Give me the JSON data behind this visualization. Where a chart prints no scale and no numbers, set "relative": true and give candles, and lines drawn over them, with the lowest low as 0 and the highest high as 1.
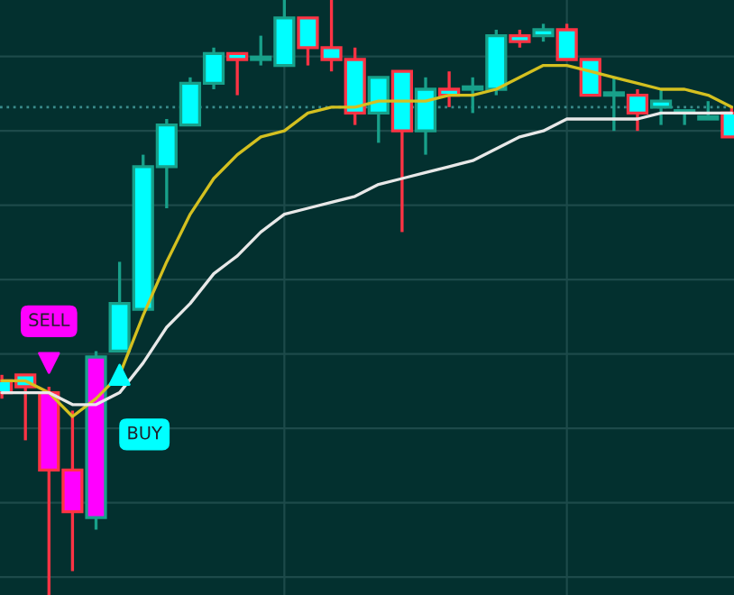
{
  "chart_data": {
    "type": "candlestick",
    "relative": true,
    "tick_labels": false,
    "grid": true,
    "categories": [
      null,
      null,
      null,
      null,
      null,
      null,
      null,
      null,
      null,
      null,
      null,
      null,
      null,
      null,
      null,
      null,
      null,
      null,
      null,
      null,
      null,
      null,
      null,
      null,
      null,
      null,
      null,
      null,
      null,
      null,
      null,
      null
    ],
    "ohlc": [
      [
        0.36,
        0.37,
        0.33,
        0.34
      ],
      [
        0.37,
        0.37,
        0.26,
        0.35
      ],
      [
        0.34,
        0.35,
        0,
        0.21
      ],
      [
        0.21,
        0.31,
        0.04,
        0.14
      ],
      [
        0.13,
        0.41,
        0.11,
        0.4
      ],
      [
        0.41,
        0.56,
        0.41,
        0.49
      ],
      [
        0.48,
        0.74,
        0.48,
        0.72
      ],
      [
        0.72,
        0.8,
        0.65,
        0.79
      ],
      [
        0.79,
        0.87,
        0.79,
        0.86
      ],
      [
        0.86,
        0.92,
        0.85,
        0.91
      ],
      [
        0.91,
        0.91,
        0.84,
        0.9
      ],
      [
        0.9,
        0.94,
        0.89,
        0.9
      ],
      [
        0.89,
        1,
        0.89,
        0.97
      ],
      [
        0.97,
        0.97,
        0.89,
        0.92
      ],
      [
        0.92,
        1,
        0.88,
        0.9
      ],
      [
        0.9,
        0.92,
        0.79,
        0.81
      ],
      [
        0.81,
        0.87,
        0.76,
        0.87
      ],
      [
        0.88,
        0.88,
        0.61,
        0.78
      ],
      [
        0.78,
        0.87,
        0.74,
        0.85
      ],
      [
        0.85,
        0.88,
        0.82,
        0.84
      ],
      [
        0.85,
        0.87,
        0.81,
        0.85
      ],
      [
        0.85,
        0.95,
        0.84,
        0.94
      ],
      [
        0.94,
        0.95,
        0.92,
        0.93
      ],
      [
        0.94,
        0.96,
        0.93,
        0.95
      ],
      [
        0.95,
        0.96,
        0.9,
        0.9
      ],
      [
        0.9,
        0.9,
        0.84,
        0.84
      ],
      [
        0.84,
        0.87,
        0.78,
        0.84
      ],
      [
        0.84,
        0.85,
        0.78,
        0.81
      ],
      [
        0.82,
        0.85,
        0.79,
        0.83
      ],
      [
        0.81,
        0.81,
        0.79,
        0.81
      ],
      [
        0.8,
        0.83,
        0.8,
        0.8
      ],
      [
        0.81,
        0.82,
        0.77,
        0.77
      ]
    ],
    "colors": [
      "#00ffff",
      "#00ffff",
      "#ff00ff",
      "#ff00ff",
      "#ff00ff",
      "#00ffff",
      "#00ffff",
      "#00ffff",
      "#00ffff",
      "#00ffff",
      "#00ffff",
      "#00ffff",
      "#00ffff",
      "#00ffff",
      "#00ffff",
      "#00ffff",
      "#00ffff",
      "#00ffff",
      "#00ffff",
      "#00ffff",
      "#00ffff",
      "#00ffff",
      "#00ffff",
      "#00ffff",
      "#00ffff",
      "#00ffff",
      "#00ffff",
      "#00ffff",
      "#00ffff",
      "#00ffff",
      "#00ffff",
      "#00ffff"
    ],
    "series": [
      {
        "type": "line",
        "color": "#d4c020",
        "values": [
          0.36,
          0.36,
          0.34,
          0.3,
          0.33,
          0.37,
          0.47,
          0.56,
          0.64,
          0.7,
          0.74,
          0.77,
          0.78,
          0.81,
          0.82,
          0.82,
          0.83,
          0.83,
          0.83,
          0.84,
          0.84,
          0.85,
          0.87,
          0.89,
          0.89,
          0.88,
          0.87,
          0.86,
          0.85,
          0.85,
          0.84,
          0.82
        ]
      },
      {
        "type": "line",
        "color": "#e8e8e8",
        "values": [
          0.34,
          0.34,
          0.34,
          0.32,
          0.32,
          0.34,
          0.39,
          0.45,
          0.49,
          0.54,
          0.57,
          0.61,
          0.64,
          0.65,
          0.66,
          0.67,
          0.69,
          0.7,
          0.71,
          0.72,
          0.73,
          0.75,
          0.77,
          0.78,
          0.8,
          0.8,
          0.8,
          0.8,
          0.81,
          0.81,
          0.81,
          0.81
        ]
      },
      {
        "type": "scatter",
        "color": "#ff00ff",
        "marker": "triangle",
        "values": [
          null,
          null,
          0.39,
          null,
          null,
          null,
          null,
          null,
          null,
          null,
          null,
          null,
          null,
          null,
          null,
          null,
          null,
          null,
          null,
          null,
          null,
          null,
          null,
          null,
          null,
          null,
          null,
          null,
          null,
          null,
          null,
          null
        ]
      },
      {
        "type": "scatter",
        "color": "#00ffff",
        "marker": "triangle",
        "values": [
          null,
          null,
          null,
          null,
          null,
          0.37,
          null,
          null,
          null,
          null,
          null,
          null,
          null,
          null,
          null,
          null,
          null,
          null,
          null,
          null,
          null,
          null,
          null,
          null,
          null,
          null,
          null,
          null,
          null,
          null,
          null,
          null
        ]
      }
    ],
    "ref_lines": [
      {
        "axis": "y",
        "value": 0.82,
        "color": "#3a8c8c",
        "line_style": "dotted"
      }
    ],
    "annotations": [
      "SELL",
      "BUY"
    ]
  }
}
